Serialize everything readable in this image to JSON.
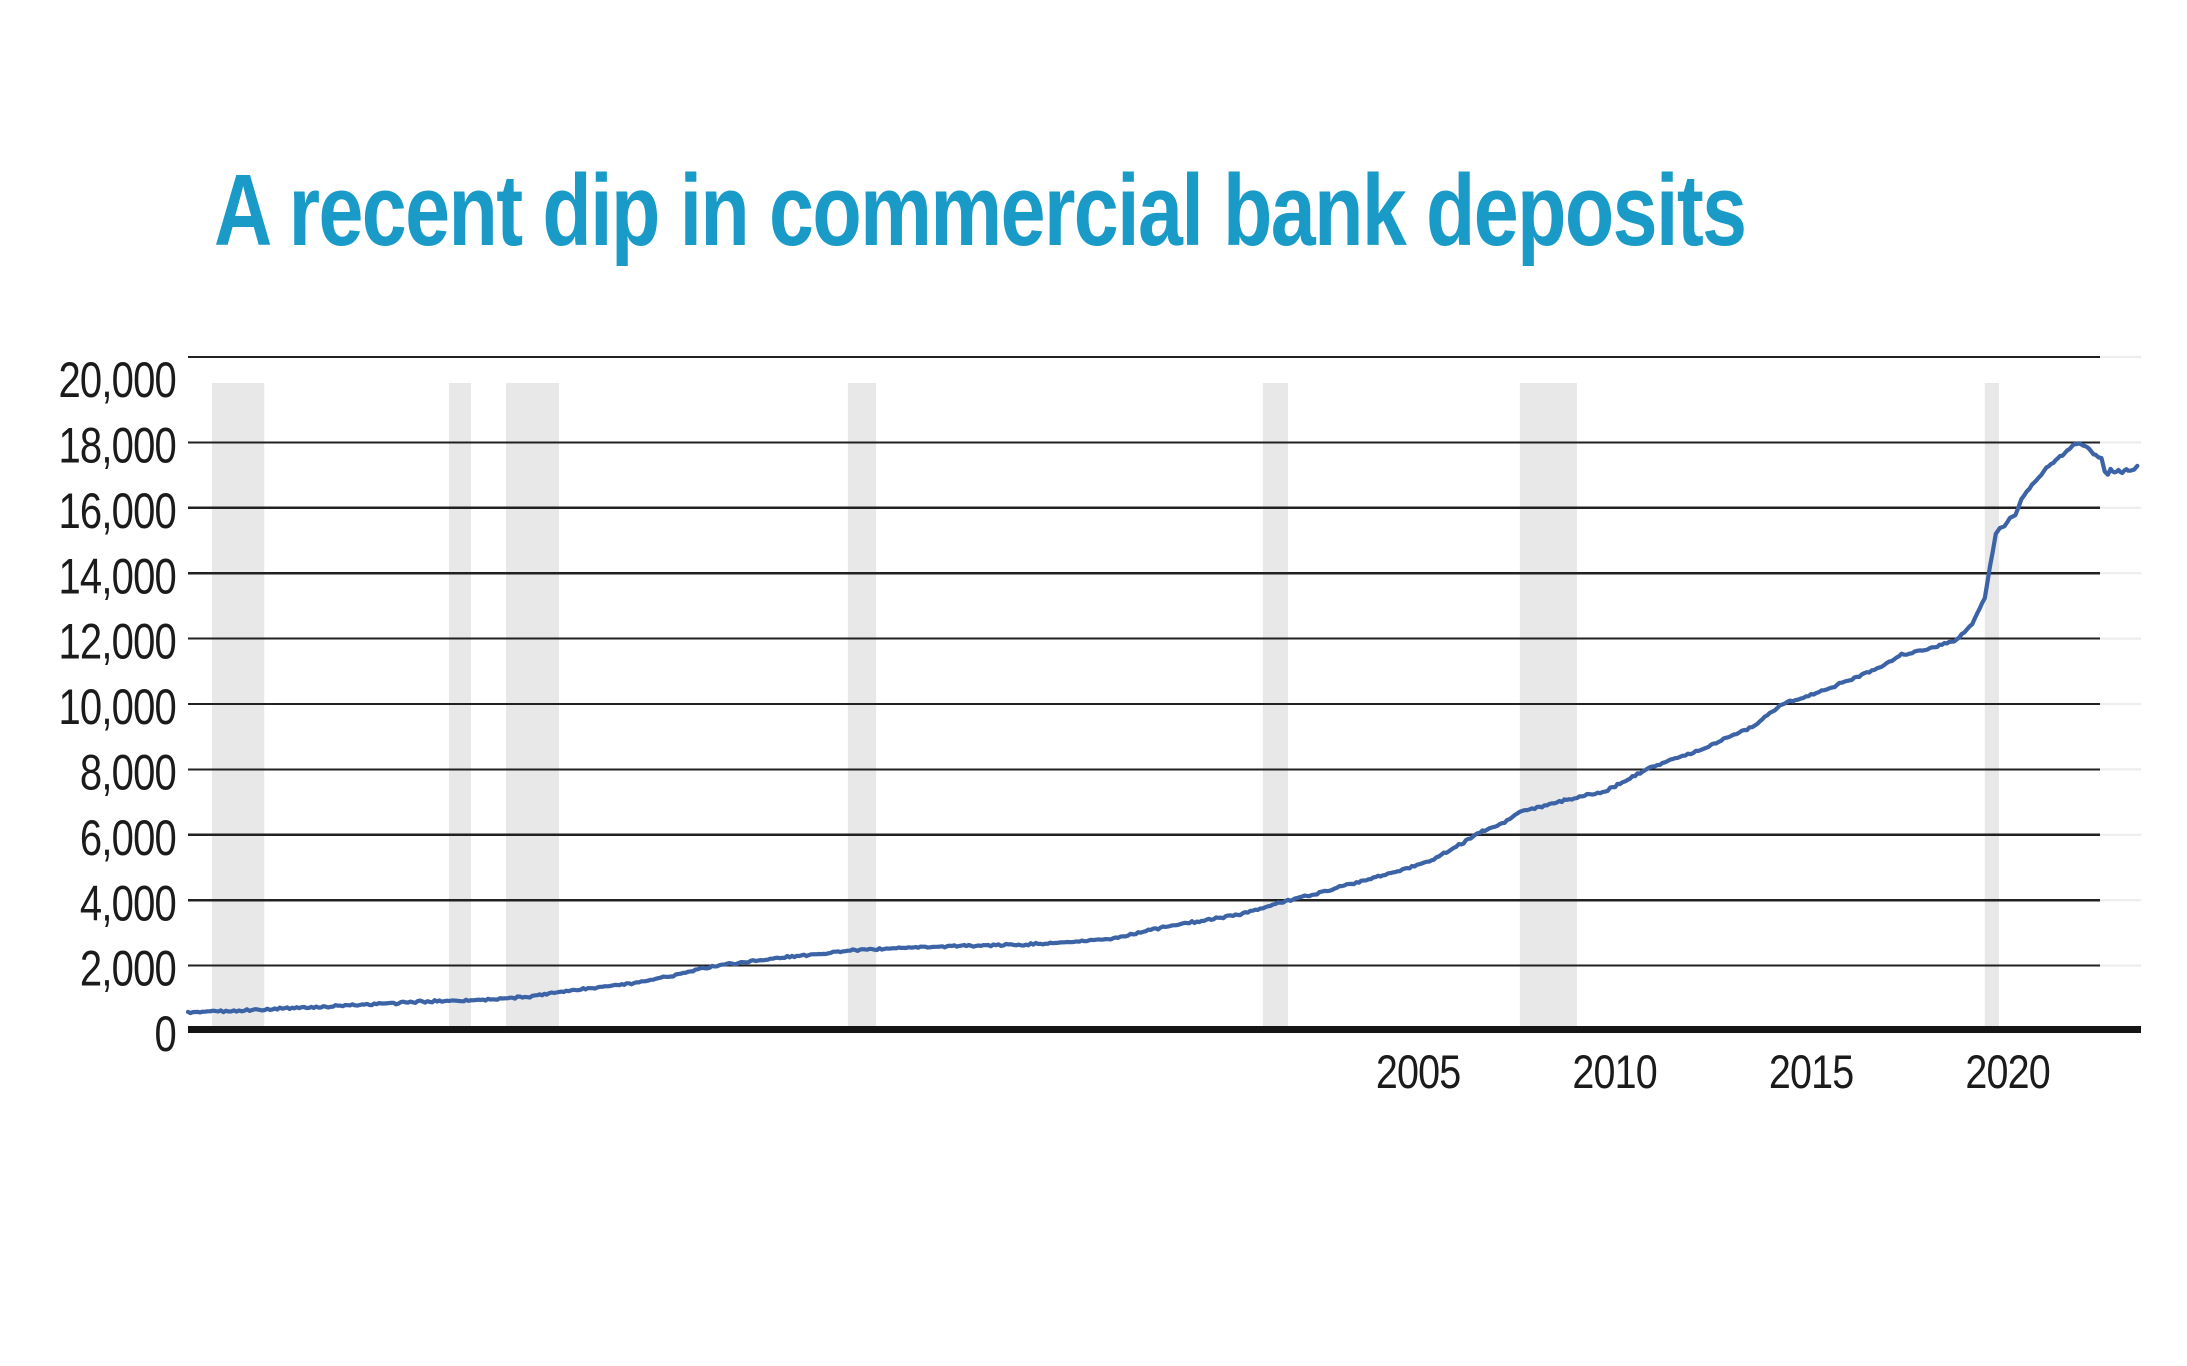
{
  "title": "A recent dip in commercial bank deposits",
  "chart_data": {
    "type": "line",
    "title": "A recent dip in commercial bank deposits",
    "xlabel": "",
    "ylabel": "",
    "x_domain": [
      1973.7,
      2023.32
    ],
    "ylim": [
      0,
      20600
    ],
    "grid": "horizontal",
    "legend": "none",
    "x_ticks": [
      {
        "value": 2005,
        "label": "2005"
      },
      {
        "value": 2010,
        "label": "2010"
      },
      {
        "value": 2015,
        "label": "2015"
      },
      {
        "value": 2020,
        "label": "2020"
      }
    ],
    "y_ticks": [
      {
        "value": 0,
        "label": "0"
      },
      {
        "value": 2000,
        "label": "2,000"
      },
      {
        "value": 4000,
        "label": "4,000"
      },
      {
        "value": 6000,
        "label": "6,000"
      },
      {
        "value": 8000,
        "label": "8,000"
      },
      {
        "value": 10000,
        "label": "10,000"
      },
      {
        "value": 12000,
        "label": "12,000"
      },
      {
        "value": 14000,
        "label": "14,000"
      },
      {
        "value": 16000,
        "label": "16,000"
      },
      {
        "value": 18000,
        "label": "18,000"
      },
      {
        "value": 20000,
        "label": "20,000"
      }
    ],
    "recession_bands": [
      {
        "start": 1974.31,
        "end": 1975.64
      },
      {
        "start": 1980.34,
        "end": 1980.9
      },
      {
        "start": 1981.79,
        "end": 1983.14
      },
      {
        "start": 1990.49,
        "end": 1991.21
      },
      {
        "start": 2001.05,
        "end": 2001.69
      },
      {
        "start": 2007.59,
        "end": 2009.04
      },
      {
        "start": 2019.42,
        "end": 2019.78
      }
    ],
    "series": [
      {
        "name": "Commercial bank deposits",
        "points": [
          [
            1973.7,
            555
          ],
          [
            1974.2,
            585
          ],
          [
            1974.8,
            620
          ],
          [
            1975.4,
            650
          ],
          [
            1976.1,
            690
          ],
          [
            1976.9,
            730
          ],
          [
            1977.7,
            775
          ],
          [
            1978.5,
            825
          ],
          [
            1979.3,
            875
          ],
          [
            1980.1,
            915
          ],
          [
            1980.9,
            945
          ],
          [
            1981.7,
            985
          ],
          [
            1982.4,
            1060
          ],
          [
            1983.2,
            1210
          ],
          [
            1984.0,
            1320
          ],
          [
            1984.8,
            1430
          ],
          [
            1985.6,
            1580
          ],
          [
            1986.3,
            1760
          ],
          [
            1987.1,
            2000
          ],
          [
            1987.9,
            2120
          ],
          [
            1988.7,
            2230
          ],
          [
            1989.5,
            2330
          ],
          [
            1990.3,
            2430
          ],
          [
            1990.8,
            2480
          ],
          [
            1991.6,
            2530
          ],
          [
            1992.4,
            2570
          ],
          [
            1993.2,
            2600
          ],
          [
            1994.0,
            2620
          ],
          [
            1994.9,
            2645
          ],
          [
            1995.7,
            2685
          ],
          [
            1996.5,
            2745
          ],
          [
            1997.3,
            2840
          ],
          [
            1998.2,
            3100
          ],
          [
            1999.0,
            3280
          ],
          [
            1999.8,
            3430
          ],
          [
            2000.6,
            3610
          ],
          [
            2001.05,
            3760
          ],
          [
            2001.69,
            4000
          ],
          [
            2002.3,
            4160
          ],
          [
            2003.0,
            4400
          ],
          [
            2003.8,
            4660
          ],
          [
            2004.6,
            4930
          ],
          [
            2005.4,
            5260
          ],
          [
            2006.1,
            5720
          ],
          [
            2006.45,
            6000
          ],
          [
            2007.2,
            6380
          ],
          [
            2007.59,
            6700
          ],
          [
            2008.4,
            6950
          ],
          [
            2009.04,
            7150
          ],
          [
            2009.7,
            7300
          ],
          [
            2010.2,
            7600
          ],
          [
            2010.9,
            8070
          ],
          [
            2011.6,
            8350
          ],
          [
            2012.2,
            8600
          ],
          [
            2012.9,
            9000
          ],
          [
            2013.5,
            9300
          ],
          [
            2014.27,
            10000
          ],
          [
            2015.0,
            10280
          ],
          [
            2015.6,
            10550
          ],
          [
            2016.1,
            10800
          ],
          [
            2016.8,
            11150
          ],
          [
            2017.3,
            11500
          ],
          [
            2017.9,
            11650
          ],
          [
            2018.7,
            11960
          ],
          [
            2019.1,
            12450
          ],
          [
            2019.42,
            13240
          ],
          [
            2019.55,
            14200
          ],
          [
            2019.62,
            14650
          ],
          [
            2019.7,
            15200
          ],
          [
            2019.8,
            15380
          ],
          [
            2019.92,
            15440
          ],
          [
            2020.06,
            15690
          ],
          [
            2020.2,
            15810
          ],
          [
            2020.35,
            16240
          ],
          [
            2020.56,
            16600
          ],
          [
            2020.79,
            16910
          ],
          [
            2020.99,
            17220
          ],
          [
            2021.22,
            17460
          ],
          [
            2021.45,
            17650
          ],
          [
            2021.65,
            17890
          ],
          [
            2021.81,
            17990
          ],
          [
            2021.98,
            17890
          ],
          [
            2022.08,
            17770
          ],
          [
            2022.24,
            17590
          ],
          [
            2022.39,
            17520
          ],
          [
            2022.47,
            17100
          ],
          [
            2022.55,
            16990
          ],
          [
            2022.62,
            17160
          ],
          [
            2022.72,
            17070
          ],
          [
            2022.82,
            17140
          ],
          [
            2022.92,
            17060
          ],
          [
            2023.02,
            17190
          ],
          [
            2023.12,
            17130
          ],
          [
            2023.22,
            17180
          ],
          [
            2023.3,
            17280
          ]
        ]
      }
    ],
    "colors": {
      "title": "#1a9bc7",
      "line": "#3b63a6",
      "recession_band": "#e8e8e8",
      "gridline": "#212121",
      "gridline_fade": "#ededed",
      "axis": "#151515",
      "tick_label": "#1b1b1b",
      "background": "#ffffff"
    }
  }
}
